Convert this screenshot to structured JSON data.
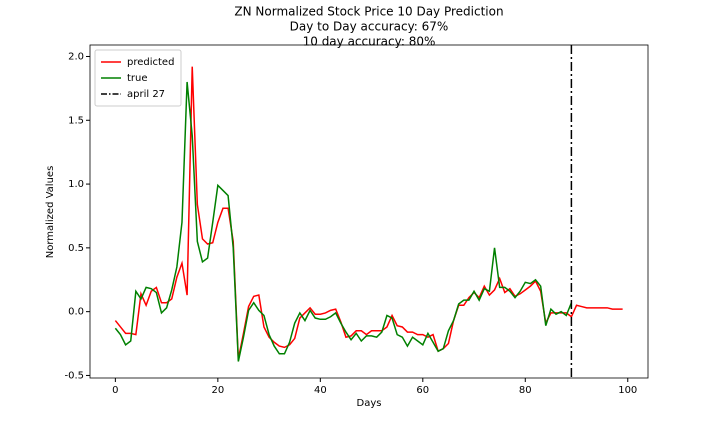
{
  "chart_data": {
    "type": "line",
    "title": "ZN Normalized Stock Price 10 Day Prediction",
    "subtitle": [
      "Day to Day accuracy: 67%",
      "10 day accuracy: 80%"
    ],
    "xlabel": "Days",
    "ylabel": "Normalized Values",
    "x": [
      0,
      1,
      2,
      3,
      4,
      5,
      6,
      7,
      8,
      9,
      10,
      11,
      12,
      13,
      14,
      15,
      16,
      17,
      18,
      19,
      20,
      21,
      22,
      23,
      24,
      25,
      26,
      27,
      28,
      29,
      30,
      31,
      32,
      33,
      34,
      35,
      36,
      37,
      38,
      39,
      40,
      41,
      42,
      43,
      44,
      45,
      46,
      47,
      48,
      49,
      50,
      51,
      52,
      53,
      54,
      55,
      56,
      57,
      58,
      59,
      60,
      61,
      62,
      63,
      64,
      65,
      66,
      67,
      68,
      69,
      70,
      71,
      72,
      73,
      74,
      75,
      76,
      77,
      78,
      79,
      80,
      81,
      82,
      83,
      84,
      85,
      86,
      87,
      88,
      89,
      90,
      91,
      92,
      93,
      94,
      95,
      96,
      97,
      98,
      99
    ],
    "series": [
      {
        "name": "predicted",
        "color": "#ff0000",
        "values": [
          -0.07,
          -0.12,
          -0.17,
          -0.17,
          -0.18,
          0.14,
          0.05,
          0.16,
          0.19,
          0.07,
          0.07,
          0.1,
          0.27,
          0.38,
          0.13,
          1.92,
          0.84,
          0.57,
          0.53,
          0.54,
          0.7,
          0.81,
          0.81,
          0.55,
          -0.37,
          -0.17,
          0.04,
          0.12,
          0.13,
          -0.12,
          -0.2,
          -0.24,
          -0.27,
          -0.28,
          -0.26,
          -0.21,
          -0.05,
          -0.01,
          0.03,
          -0.02,
          -0.02,
          -0.01,
          0.01,
          0.02,
          -0.08,
          -0.2,
          -0.19,
          -0.15,
          -0.15,
          -0.18,
          -0.15,
          -0.15,
          -0.15,
          -0.12,
          -0.03,
          -0.11,
          -0.12,
          -0.16,
          -0.16,
          -0.18,
          -0.18,
          -0.2,
          -0.18,
          -0.31,
          -0.29,
          -0.25,
          -0.07,
          0.05,
          0.05,
          0.11,
          0.15,
          0.11,
          0.2,
          0.13,
          0.17,
          0.26,
          0.15,
          0.18,
          0.12,
          0.14,
          0.17,
          0.2,
          0.24,
          0.16,
          -0.09,
          -0.01,
          -0.01,
          -0.01,
          -0.01,
          -0.04,
          0.05,
          0.04,
          0.03,
          0.03,
          0.03,
          0.03,
          0.03,
          0.02,
          0.02,
          0.02
        ]
      },
      {
        "name": "true",
        "color": "#008000",
        "values": [
          -0.13,
          -0.18,
          -0.26,
          -0.23,
          0.16,
          0.1,
          0.19,
          0.18,
          0.15,
          -0.01,
          0.03,
          0.17,
          0.35,
          0.7,
          1.8,
          1.38,
          0.55,
          0.39,
          0.42,
          0.7,
          0.99,
          0.95,
          0.91,
          0.5,
          -0.39,
          -0.2,
          0.01,
          0.07,
          0.01,
          -0.03,
          -0.18,
          -0.27,
          -0.33,
          -0.33,
          -0.24,
          -0.09,
          -0.01,
          -0.07,
          0.01,
          -0.05,
          -0.06,
          -0.06,
          -0.04,
          -0.01,
          -0.09,
          -0.16,
          -0.22,
          -0.17,
          -0.23,
          -0.19,
          -0.19,
          -0.2,
          -0.16,
          -0.03,
          -0.05,
          -0.18,
          -0.2,
          -0.27,
          -0.2,
          -0.23,
          -0.26,
          -0.17,
          -0.24,
          -0.31,
          -0.29,
          -0.15,
          -0.07,
          0.06,
          0.09,
          0.09,
          0.16,
          0.09,
          0.18,
          0.16,
          0.5,
          0.19,
          0.19,
          0.16,
          0.11,
          0.16,
          0.23,
          0.22,
          0.25,
          0.2,
          -0.11,
          0.02,
          -0.02,
          0.0,
          -0.03,
          0.07,
          null,
          null,
          null,
          null,
          null,
          null,
          null,
          null,
          null,
          null
        ]
      }
    ],
    "vline": {
      "name": "april 27",
      "x": 89,
      "color": "#000000"
    },
    "xlim": [
      -4.95,
      103.95
    ],
    "ylim": [
      -0.52,
      2.09
    ],
    "xticks": [
      0,
      20,
      40,
      60,
      80,
      100
    ],
    "yticks": [
      -0.5,
      {
        "value": 0,
        "label": "0.0"
      },
      0.5,
      {
        "value": 1,
        "label": "1.0"
      },
      1.5,
      {
        "value": 2,
        "label": "2.0"
      }
    ],
    "legend": "upper left"
  }
}
